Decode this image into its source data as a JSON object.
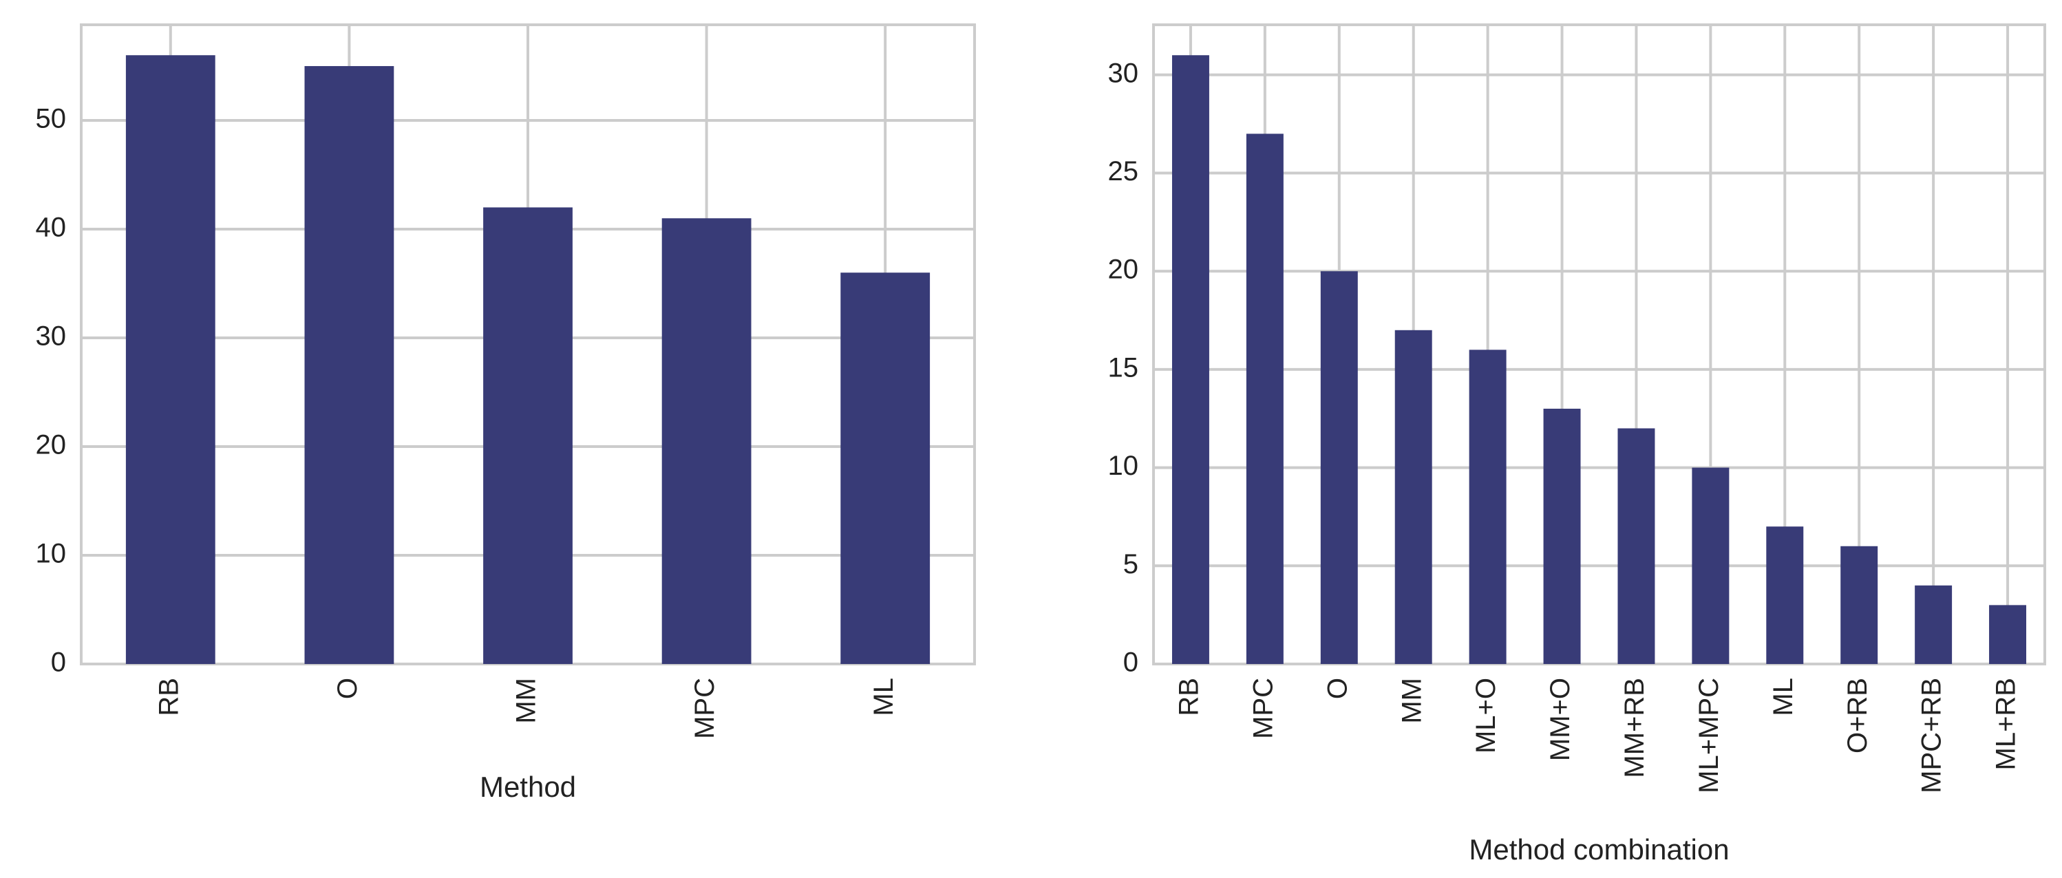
{
  "chart_data": [
    {
      "type": "bar",
      "x_label": "Method",
      "categories": [
        "RB",
        "O",
        "MM",
        "MPC",
        "ML"
      ],
      "values": [
        56,
        55,
        42,
        41,
        36
      ],
      "color": "#383b77",
      "ylim": [
        0,
        58.8
      ],
      "yticks": [
        0,
        10,
        20,
        30,
        40,
        50
      ],
      "grid": true
    },
    {
      "type": "bar",
      "x_label": "Method combination",
      "categories": [
        "RB",
        "MPC",
        "O",
        "MM",
        "ML+O",
        "MM+O",
        "MM+RB",
        "ML+MPC",
        "ML",
        "O+RB",
        "MPC+RB",
        "ML+RB"
      ],
      "values": [
        31,
        27,
        20,
        17,
        16,
        13,
        12,
        10,
        7,
        6,
        4,
        3
      ],
      "color": "#383b77",
      "ylim": [
        0,
        32.55
      ],
      "yticks": [
        0,
        5,
        10,
        15,
        20,
        25,
        30
      ],
      "grid": true
    }
  ]
}
